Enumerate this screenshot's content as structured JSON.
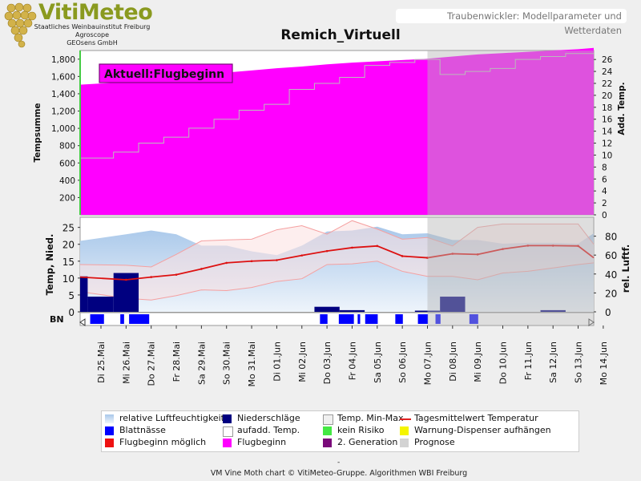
{
  "header": {
    "logo_title": "VitiMeteo",
    "logo_lines": [
      "Staatliches Weinbauinstitut Freiburg",
      "Agroscope",
      "GEOsens GmbH"
    ],
    "subtitle": "Traubenwickler: Modellparameter und Wetterdaten"
  },
  "footer": {
    "dash": "-",
    "credit": "VM Vine Moth chart © VitiMeteo-Gruppe. Algorithmen WBI Freiburg"
  },
  "chart_data": {
    "type": "area",
    "title": "Remich_Virtuell",
    "annotation": "Aktuell:Flugbeginn",
    "dates": [
      "Di 25.Mai",
      "Mi 26.Mai",
      "Do 27.Mai",
      "Fr 28.Mai",
      "Sa 29.Mai",
      "So 30.Mai",
      "Mo 31.Mai",
      "Di 01.Jun",
      "Mi 02.Jun",
      "Do 03.Jun",
      "Fr 04.Jun",
      "Sa 05.Jun",
      "So 06.Jun",
      "Mo 07.Jun",
      "Di 08.Jun",
      "Mi 09.Jun",
      "Do 10.Jun",
      "Fr 11.Jun",
      "Sa 12.Jun",
      "So 13.Jun",
      "Mo 14.Jun"
    ],
    "prognosis_from": "Mo 07.Jun",
    "top_panel": {
      "ylabel_left": "Tempsumme",
      "ylabel_right": "Add. Temp.",
      "ylim_left": [
        0,
        1900
      ],
      "yticks_left": [
        200,
        400,
        600,
        800,
        1000,
        1200,
        1400,
        1600,
        1800
      ],
      "ylim_right": [
        0,
        27.5
      ],
      "yticks_right": [
        0,
        2,
        4,
        6,
        8,
        10,
        12,
        14,
        16,
        18,
        20,
        22,
        24,
        26
      ],
      "tempsumme": [
        1505,
        1535,
        1560,
        1590,
        1620,
        1645,
        1670,
        1695,
        1715,
        1740,
        1760,
        1775,
        1790,
        1805,
        1830,
        1855,
        1870,
        1885,
        1900,
        1915,
        1930
      ],
      "add_temp": [
        9.5,
        10.5,
        12,
        13,
        14.5,
        16,
        17.5,
        18.5,
        21,
        22,
        23,
        25,
        25.5,
        26,
        23.5,
        24,
        24.5,
        26,
        26.5,
        27,
        27
      ]
    },
    "bottom_panel": {
      "ylabel_left": "Temp, Nied.",
      "ylabel_right": "rel. Luftf.",
      "ylim_left": [
        0,
        28
      ],
      "yticks_left": [
        0,
        5,
        10,
        15,
        20,
        25
      ],
      "ylim_right": [
        0,
        100
      ],
      "yticks_right": [
        0,
        20,
        40,
        60,
        80
      ],
      "temp_mean": [
        10.3,
        9.5,
        10.3,
        11.0,
        12.7,
        14.5,
        15.0,
        15.3,
        16.7,
        18.0,
        19.0,
        19.5,
        16.5,
        16.0,
        17.2,
        17.0,
        18.6,
        19.6,
        19.6,
        19.5,
        16.0
      ],
      "temp_min": [
        6.0,
        4.0,
        3.5,
        4.8,
        6.5,
        6.3,
        7.2,
        9.0,
        9.8,
        14.0,
        14.2,
        15.0,
        12.0,
        10.5,
        10.5,
        9.5,
        11.5,
        12.0,
        13.0,
        14.0,
        14.5
      ],
      "temp_max": [
        14.0,
        13.8,
        13.3,
        17.0,
        21.0,
        21.3,
        21.5,
        24.3,
        25.5,
        23.0,
        27.0,
        24.5,
        21.5,
        22.0,
        19.5,
        25.0,
        26.0,
        26.0,
        26.0,
        26.0,
        20.0
      ],
      "rel_humidity": [
        75,
        82,
        86,
        82,
        70,
        70,
        64,
        60,
        70,
        85,
        86,
        90,
        82,
        83,
        76,
        76,
        72,
        73,
        73,
        72,
        83
      ],
      "precip_days": [
        "Di 25.Mai",
        "Di 25.Mai",
        "Mi 26.Mai",
        "Do 03.Jun",
        "Fr 04.Jun",
        "Mo 07.Jun",
        "Di 08.Jun",
        "Sa 12.Jun"
      ],
      "precip_bars": [
        {
          "from": 0.0,
          "to": 0.3,
          "value": 10.5
        },
        {
          "from": 0.3,
          "to": 1.33,
          "value": 4.5
        },
        {
          "from": 1.33,
          "to": 2.33,
          "value": 11.5
        },
        {
          "from": 9.33,
          "to": 10.33,
          "value": 1.5
        },
        {
          "from": 10.33,
          "to": 11.33,
          "value": 0.5
        },
        {
          "from": 13.33,
          "to": 14.33,
          "value": 0.2
        },
        {
          "from": 14.33,
          "to": 15.33,
          "value": 4.5
        },
        {
          "from": 18.33,
          "to": 19.33,
          "value": 0.5
        }
      ],
      "bn_label": "BN",
      "blattnaesse_intervals": [
        [
          0.4,
          0.95
        ],
        [
          1.6,
          1.75
        ],
        [
          1.95,
          2.75
        ],
        [
          9.55,
          9.85
        ],
        [
          10.3,
          10.9
        ],
        [
          11.05,
          11.15
        ],
        [
          11.35,
          11.85
        ],
        [
          12.55,
          12.85
        ],
        [
          13.45,
          13.85
        ],
        [
          14.15,
          14.35
        ],
        [
          15.5,
          15.85
        ]
      ]
    },
    "legend": {
      "items": [
        {
          "label": "relative Luftfeuchtigkeit",
          "color": "#a9c8ea"
        },
        {
          "label": "Niederschläge",
          "color": "#000080"
        },
        {
          "label": "Temp. Min-Max",
          "color": "#f0f0f0"
        },
        {
          "label": "Tagesmittelwert Temperatur",
          "color": "#e02020"
        },
        {
          "label": "Blattnässe",
          "color": "#0000ff"
        },
        {
          "label": "aufadd. Temp.",
          "color": "#ffffff"
        },
        {
          "label": "kein Risiko",
          "color": "#44e844"
        },
        {
          "label": "Warnung-Dispenser aufhängen",
          "color": "#f5f500"
        },
        {
          "label": "Flugbeginn möglich",
          "color": "#ee1111"
        },
        {
          "label": "Flugbeginn",
          "color": "#ff00ff"
        },
        {
          "label": "2. Generation",
          "color": "#7a0a7a"
        },
        {
          "label": "Prognose",
          "color": "#d3d3d3"
        }
      ]
    }
  }
}
